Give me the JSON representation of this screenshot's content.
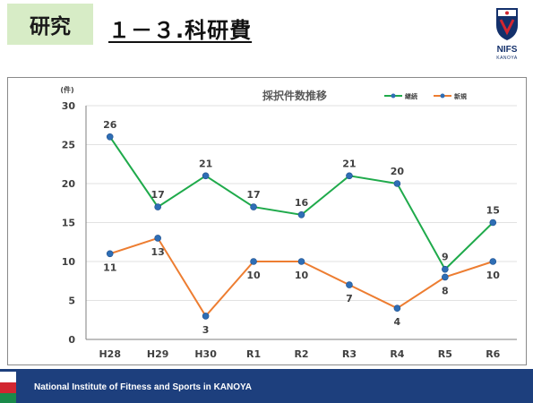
{
  "header": {
    "section": "研究",
    "title": "１－３.科研費"
  },
  "logo": {
    "main": "NIFS",
    "sub": "KANOYA"
  },
  "footer": {
    "text": "National Institute of Fitness and Sports in KANOYA"
  },
  "colors": {
    "continuing": "#1faa4b",
    "new": "#ed7d31",
    "marker": "#2e6eb5",
    "section_bg": "#d7ecc6",
    "footer_bg": "#1d3f7d",
    "grid": "#d9d9d9"
  },
  "chart_data": {
    "type": "line",
    "title": "採択件数推移",
    "ylabel": "(件)",
    "xlabel": "",
    "categories": [
      "H28",
      "H29",
      "H30",
      "R1",
      "R2",
      "R3",
      "R4",
      "R5",
      "R6"
    ],
    "ylim": [
      0,
      30
    ],
    "yticks": [
      0,
      5,
      10,
      15,
      20,
      25,
      30
    ],
    "grid": true,
    "legend_position": "top-right",
    "series": [
      {
        "name": "継続",
        "color": "#1faa4b",
        "values": [
          26,
          17,
          21,
          17,
          16,
          21,
          20,
          9,
          15
        ]
      },
      {
        "name": "新規",
        "color": "#ed7d31",
        "values": [
          11,
          13,
          3,
          10,
          10,
          7,
          4,
          8,
          10
        ]
      }
    ]
  }
}
